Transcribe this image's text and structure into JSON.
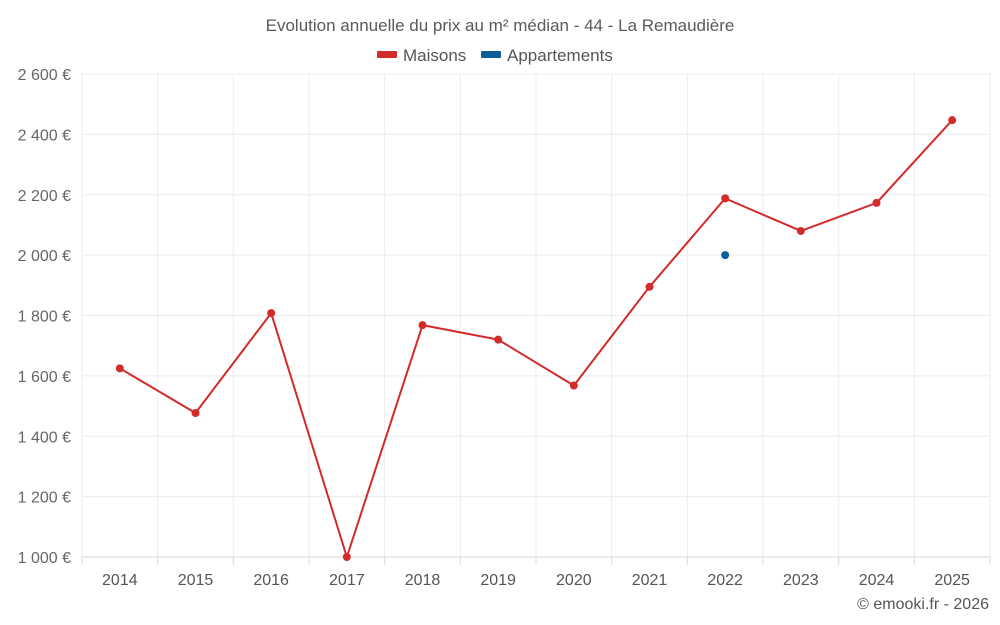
{
  "chart_data": {
    "type": "line",
    "title": "Evolution annuelle du prix au m² médian - 44 - La Remaudière",
    "categories": [
      "2014",
      "2015",
      "2016",
      "2017",
      "2018",
      "2019",
      "2020",
      "2021",
      "2022",
      "2023",
      "2024",
      "2025"
    ],
    "series": [
      {
        "name": "Maisons",
        "color": "#d32a2a",
        "values": [
          1625,
          1477,
          1808,
          1000,
          1768,
          1720,
          1568,
          1895,
          2188,
          2080,
          2173,
          2447
        ]
      },
      {
        "name": "Appartements",
        "color": "#0b5e99",
        "values": [
          null,
          null,
          null,
          null,
          null,
          null,
          null,
          null,
          2000,
          null,
          null,
          null
        ]
      }
    ],
    "ylim": [
      1000,
      2600
    ],
    "yticks": [
      1000,
      1200,
      1400,
      1600,
      1800,
      2000,
      2200,
      2400,
      2600
    ],
    "ytick_labels": [
      "1 000 €",
      "1 200 €",
      "1 400 €",
      "1 600 €",
      "1 800 €",
      "2 000 €",
      "2 200 €",
      "2 400 €",
      "2 600 €"
    ],
    "xlabel": "",
    "ylabel": "",
    "legend": "top-center",
    "grid": true
  },
  "credit": "© emooki.fr - 2026"
}
